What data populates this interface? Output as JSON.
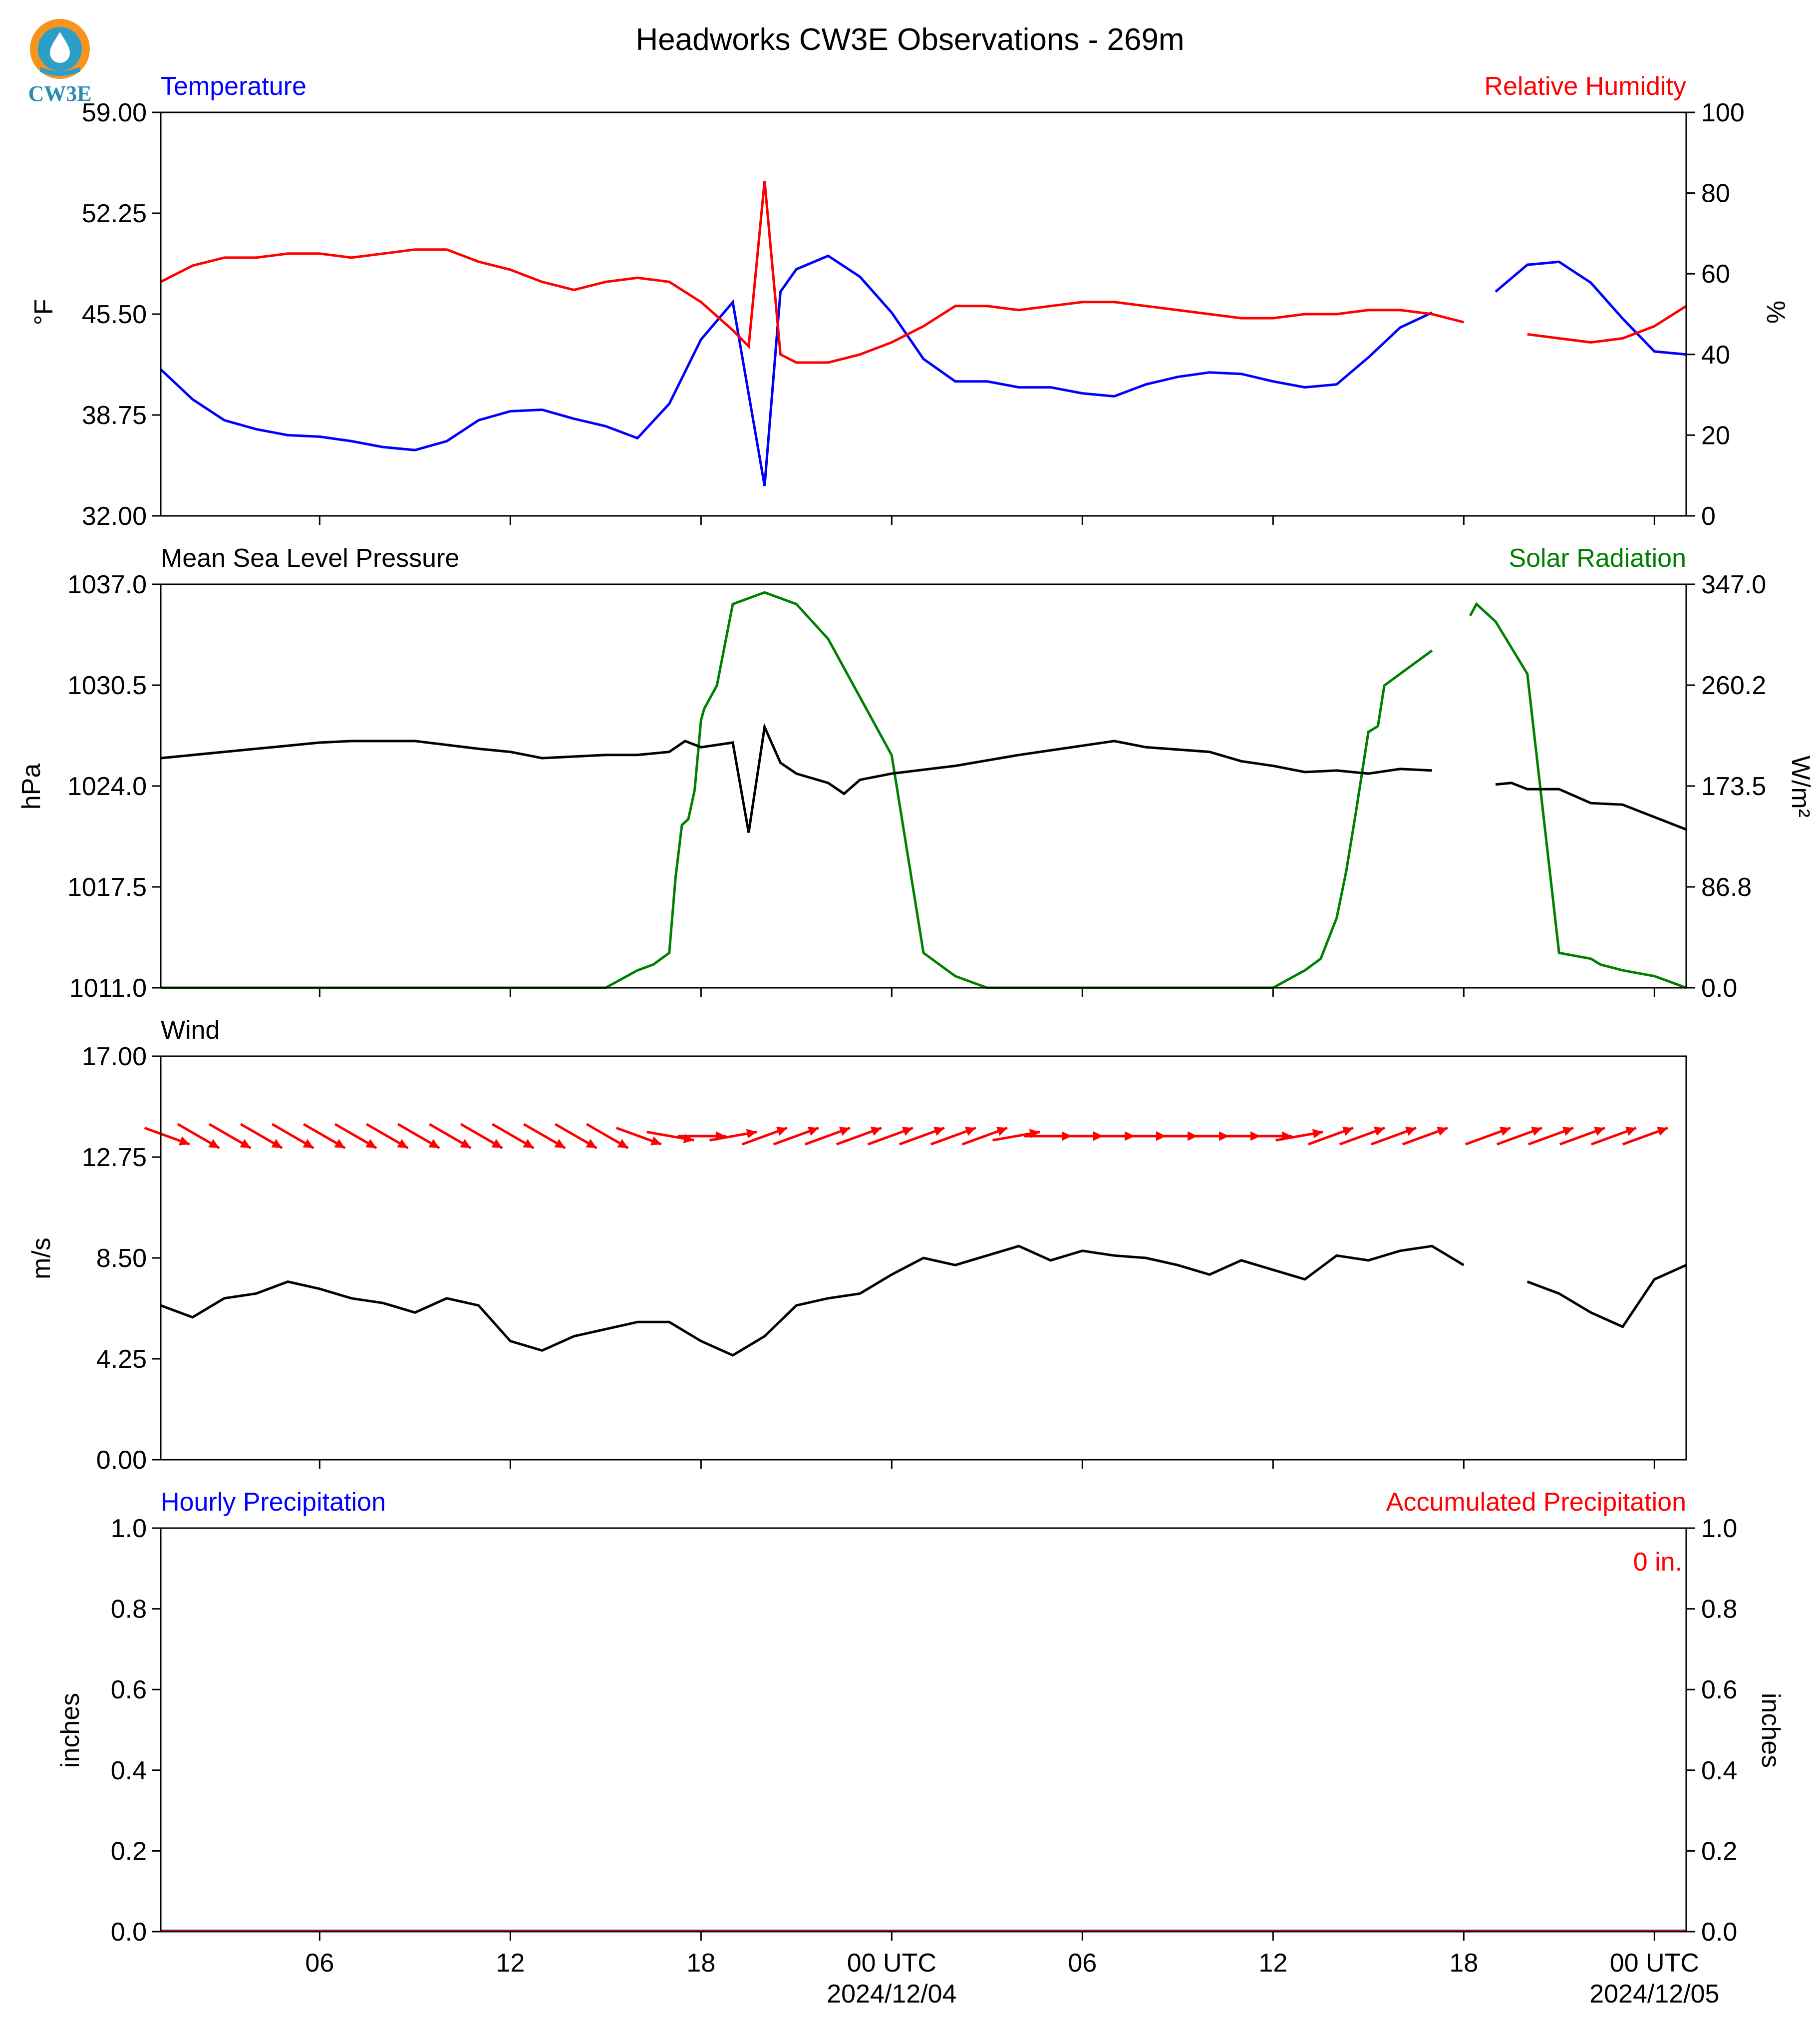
{
  "title": "Headworks CW3E Observations - 269m",
  "logo": {
    "text": "CW3E",
    "icon": "cw3e-droplet-logo"
  },
  "colors": {
    "temperature": "#0000ff",
    "humidity": "#ff0000",
    "pressure": "#000000",
    "solar": "#008000",
    "wind": "#000000",
    "barbs": "#ff0000",
    "hourly_precip": "#0000ff",
    "accum_precip": "#ff0000"
  },
  "x_axis": {
    "start": "2024-12-03T01:00Z",
    "end": "2024-12-05T01:00Z",
    "tick_labels": [
      "06",
      "12",
      "18",
      "00 UTC",
      "06",
      "12",
      "18",
      "00 UTC"
    ],
    "date_labels": [
      "2024/12/04",
      "2024/12/05"
    ]
  },
  "panels": {
    "temp": {
      "left_title": "Temperature",
      "right_title": "Relative Humidity",
      "left_unit": "$^\\circ$F",
      "right_unit": "%",
      "left_ticks": [
        "32.00",
        "38.75",
        "45.50",
        "52.25",
        "59.00"
      ],
      "right_ticks": [
        "0",
        "20",
        "40",
        "60",
        "80",
        "100"
      ]
    },
    "pressure": {
      "left_title": "Mean Sea Level Pressure",
      "right_title": "Solar Radiation",
      "left_unit": "hPa",
      "right_unit": "W/m²",
      "left_ticks": [
        "1011.0",
        "1017.5",
        "1024.0",
        "1030.5",
        "1037.0"
      ],
      "right_ticks": [
        "0.0",
        "86.8",
        "173.5",
        "260.2",
        "347.0"
      ]
    },
    "wind": {
      "left_title": "Wind",
      "left_unit": "m/s",
      "left_ticks": [
        "0.00",
        "4.25",
        "8.50",
        "12.75",
        "17.00"
      ]
    },
    "precip": {
      "left_title": "Hourly Precipitation",
      "right_title": "Accumulated Precipitation",
      "left_unit": "inches",
      "right_unit": "inches",
      "left_ticks": [
        "0.0",
        "0.2",
        "0.4",
        "0.6",
        "0.8",
        "1.0"
      ],
      "right_ticks": [
        "0.0",
        "0.2",
        "0.4",
        "0.6",
        "0.8",
        "1.0"
      ],
      "total_label": "0 in."
    }
  },
  "chart_data": [
    {
      "type": "line",
      "title": "Temperature",
      "ylabel": "$^\\circ$F",
      "ylim": [
        32,
        59
      ],
      "series": [
        {
          "name": "Temperature",
          "x_hours_utc_from_2024-12-03T00": [
            1,
            2,
            3,
            4,
            5,
            6,
            7,
            8,
            9,
            10,
            11,
            12,
            13,
            14,
            15,
            16,
            17,
            18,
            19,
            20,
            20.5,
            21,
            22,
            23,
            24,
            25,
            26,
            27,
            28,
            29,
            30,
            31,
            32,
            33,
            34,
            35,
            36,
            37,
            38,
            39,
            40,
            41,
            42,
            43,
            44,
            45,
            46,
            47,
            48,
            49
          ],
          "values": [
            41.8,
            39.8,
            38.4,
            37.8,
            37.4,
            37.3,
            37.0,
            36.6,
            36.4,
            37.0,
            38.4,
            39.0,
            39.1,
            38.5,
            38.0,
            37.2,
            39.5,
            43.8,
            46.3,
            34.0,
            47.0,
            48.5,
            49.4,
            48.0,
            45.6,
            42.5,
            41.0,
            41.0,
            40.6,
            40.6,
            40.2,
            40.0,
            40.8,
            41.3,
            41.6,
            41.5,
            41.0,
            40.6,
            40.8,
            42.6,
            44.6,
            45.6,
            null,
            47.0,
            48.8,
            49.0,
            47.6,
            45.2,
            43.0,
            42.8
          ]
        }
      ],
      "ylim_right": [
        0,
        100
      ],
      "series_right": [
        {
          "name": "Relative Humidity",
          "x_hours_utc_from_2024-12-03T00": [
            1,
            2,
            3,
            4,
            5,
            6,
            7,
            8,
            9,
            10,
            11,
            12,
            13,
            14,
            15,
            16,
            17,
            18,
            19,
            19.5,
            20,
            20.5,
            21,
            22,
            23,
            24,
            25,
            26,
            27,
            28,
            29,
            30,
            31,
            32,
            33,
            34,
            35,
            36,
            37,
            38,
            39,
            40,
            41,
            42,
            43,
            44,
            45,
            46,
            47,
            48,
            49
          ],
          "values": [
            58,
            62,
            64,
            64,
            65,
            65,
            64,
            65,
            66,
            66,
            63,
            61,
            58,
            56,
            58,
            59,
            58,
            53,
            46,
            42,
            83,
            40,
            38,
            38,
            40,
            43,
            47,
            52,
            52,
            51,
            52,
            53,
            53,
            52,
            51,
            50,
            49,
            49,
            50,
            50,
            51,
            51,
            50,
            48,
            null,
            45,
            44,
            43,
            44,
            47,
            52
          ]
        }
      ]
    },
    {
      "type": "line",
      "title": "Mean Sea Level Pressure",
      "ylabel": "hPa",
      "ylim": [
        1011,
        1037
      ],
      "series": [
        {
          "name": "Mean Sea Level Pressure",
          "x_hours_utc_from_2024-12-03T00": [
            1,
            3,
            5,
            6,
            7,
            9,
            11,
            12,
            13,
            15,
            16,
            17,
            17.5,
            18,
            19,
            19.5,
            20,
            20.5,
            21,
            22,
            22.5,
            23,
            24,
            26,
            28,
            30,
            31,
            32,
            34,
            35,
            36,
            37,
            38,
            39,
            40,
            41,
            42,
            43,
            43.5,
            44,
            45,
            46,
            47,
            48,
            49
          ],
          "values": [
            1025.8,
            1026.2,
            1026.6,
            1026.8,
            1026.9,
            1026.9,
            1026.4,
            1026.2,
            1025.8,
            1026.0,
            1026.0,
            1026.2,
            1026.9,
            1026.5,
            1026.8,
            1021.0,
            1027.8,
            1025.5,
            1024.8,
            1024.2,
            1023.5,
            1024.4,
            1024.8,
            1025.3,
            1026.0,
            1026.6,
            1026.9,
            1026.5,
            1026.2,
            1025.6,
            1025.3,
            1024.9,
            1025.0,
            1024.8,
            1025.1,
            1025.0,
            null,
            1024.1,
            1024.2,
            1023.8,
            1023.8,
            1022.9,
            1022.8,
            1022.0,
            1021.2
          ]
        }
      ],
      "ylim_right": [
        0,
        347
      ],
      "series_right": [
        {
          "name": "Solar Radiation",
          "x_hours_utc_from_2024-12-03T00": [
            1,
            10,
            13,
            14,
            15,
            16,
            16.5,
            17,
            17.2,
            17.4,
            17.6,
            17.8,
            18,
            18.1,
            18.5,
            19,
            20,
            21,
            22,
            23,
            24,
            25,
            26,
            27,
            33,
            36,
            37,
            37.5,
            38,
            38.3,
            38.6,
            39,
            39.3,
            39.5,
            40,
            40.5,
            41,
            41.6,
            42,
            42.2,
            42.4,
            43,
            44,
            45,
            46,
            46.3,
            47,
            48,
            49
          ],
          "values": [
            0,
            0,
            0,
            0,
            0,
            15,
            20,
            30,
            95,
            140,
            145,
            170,
            230,
            240,
            260,
            330,
            340,
            330,
            300,
            250,
            200,
            30,
            10,
            0,
            0,
            0,
            15,
            25,
            60,
            100,
            150,
            220,
            225,
            260,
            270,
            280,
            290,
            null,
            null,
            320,
            330,
            315,
            270,
            30,
            25,
            20,
            15,
            10,
            0
          ]
        }
      ]
    },
    {
      "type": "line",
      "title": "Wind",
      "ylabel": "m/s",
      "ylim": [
        0,
        17
      ],
      "series": [
        {
          "name": "Wind speed",
          "x_hours_utc_from_2024-12-03T00": [
            1,
            2,
            3,
            4,
            5,
            6,
            7,
            8,
            9,
            10,
            11,
            12,
            13,
            14,
            15,
            16,
            17,
            18,
            19,
            20,
            21,
            22,
            23,
            24,
            25,
            26,
            27,
            28,
            29,
            30,
            31,
            32,
            33,
            34,
            35,
            36,
            37,
            38,
            39,
            40,
            41,
            42,
            43,
            44,
            45,
            46,
            47,
            48,
            49
          ],
          "values": [
            6.5,
            6.0,
            6.8,
            7.0,
            7.5,
            7.2,
            6.8,
            6.6,
            6.2,
            6.8,
            6.5,
            5.0,
            4.6,
            5.2,
            5.5,
            5.8,
            5.8,
            5.0,
            4.4,
            5.2,
            6.5,
            6.8,
            7.0,
            7.8,
            8.5,
            8.2,
            8.6,
            9.0,
            8.4,
            8.8,
            8.6,
            8.5,
            8.2,
            7.8,
            8.4,
            8.0,
            7.6,
            8.6,
            8.4,
            8.8,
            9.0,
            8.2,
            null,
            7.5,
            7.0,
            6.2,
            5.6,
            7.6,
            8.2
          ]
        }
      ],
      "barb_direction_deg": [
        290,
        300,
        300,
        300,
        300,
        300,
        300,
        300,
        300,
        300,
        300,
        300,
        300,
        300,
        300,
        290,
        280,
        270,
        260,
        250,
        250,
        250,
        250,
        250,
        250,
        250,
        250,
        260,
        270,
        270,
        270,
        270,
        270,
        270,
        270,
        270,
        260,
        250,
        250,
        250,
        250,
        null,
        250,
        250,
        250,
        250,
        250,
        250
      ]
    },
    {
      "type": "line",
      "title": "Hourly Precipitation",
      "ylabel": "inches",
      "ylim": [
        0,
        1
      ],
      "series": [
        {
          "name": "Hourly Precipitation",
          "values": [
            0,
            0,
            0,
            0,
            0,
            0,
            0,
            0,
            0,
            0,
            0,
            0,
            0,
            0,
            0,
            0,
            0,
            0,
            0,
            0,
            0,
            0,
            0,
            0,
            0,
            0,
            0,
            0,
            0,
            0,
            0,
            0,
            0,
            0,
            0,
            0,
            0,
            0,
            0,
            0,
            0,
            0,
            0,
            0,
            0,
            0,
            0,
            0
          ]
        }
      ],
      "ylim_right": [
        0,
        1
      ],
      "series_right": [
        {
          "name": "Accumulated Precipitation",
          "values": [
            0,
            0
          ]
        }
      ]
    }
  ]
}
